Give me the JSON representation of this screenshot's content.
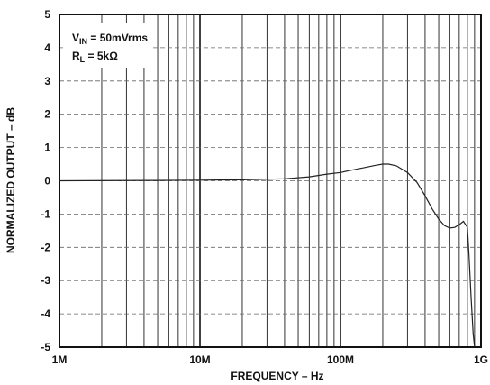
{
  "chart_data": {
    "type": "line",
    "xlabel": "FREQUENCY – Hz",
    "ylabel": "NORMALIZED OUTPUT – dB",
    "x_scale": "log",
    "xlim": [
      1000000,
      1000000000
    ],
    "ylim": [
      -5,
      5
    ],
    "x_tick_labels": [
      "1M",
      "10M",
      "100M",
      "1G"
    ],
    "y_tick_labels": [
      "5",
      "4",
      "3",
      "2",
      "1",
      "0",
      "-1",
      "-2",
      "-3",
      "-4",
      "-5"
    ],
    "grid": true,
    "annotations": {
      "vin": {
        "main": "V",
        "sub": "IN",
        "rest": " = 50mVrms"
      },
      "rl": {
        "main": "R",
        "sub": "L",
        "rest": " = 5kΩ"
      }
    },
    "series": [
      {
        "x": [
          1000000,
          5000000,
          10000000,
          20000000,
          40000000,
          60000000,
          80000000,
          100000000,
          120000000,
          150000000,
          180000000,
          200000000,
          220000000,
          250000000,
          300000000,
          350000000,
          400000000,
          450000000,
          500000000,
          550000000,
          600000000,
          650000000,
          700000000,
          750000000,
          800000000,
          820000000,
          850000000,
          880000000,
          900000000
        ],
        "y": [
          0,
          0.01,
          0.02,
          0.03,
          0.06,
          0.12,
          0.2,
          0.25,
          0.32,
          0.4,
          0.47,
          0.5,
          0.5,
          0.45,
          0.25,
          -0.05,
          -0.45,
          -0.85,
          -1.15,
          -1.35,
          -1.42,
          -1.4,
          -1.32,
          -1.22,
          -1.4,
          -2.2,
          -3.5,
          -4.6,
          -5
        ]
      }
    ]
  }
}
